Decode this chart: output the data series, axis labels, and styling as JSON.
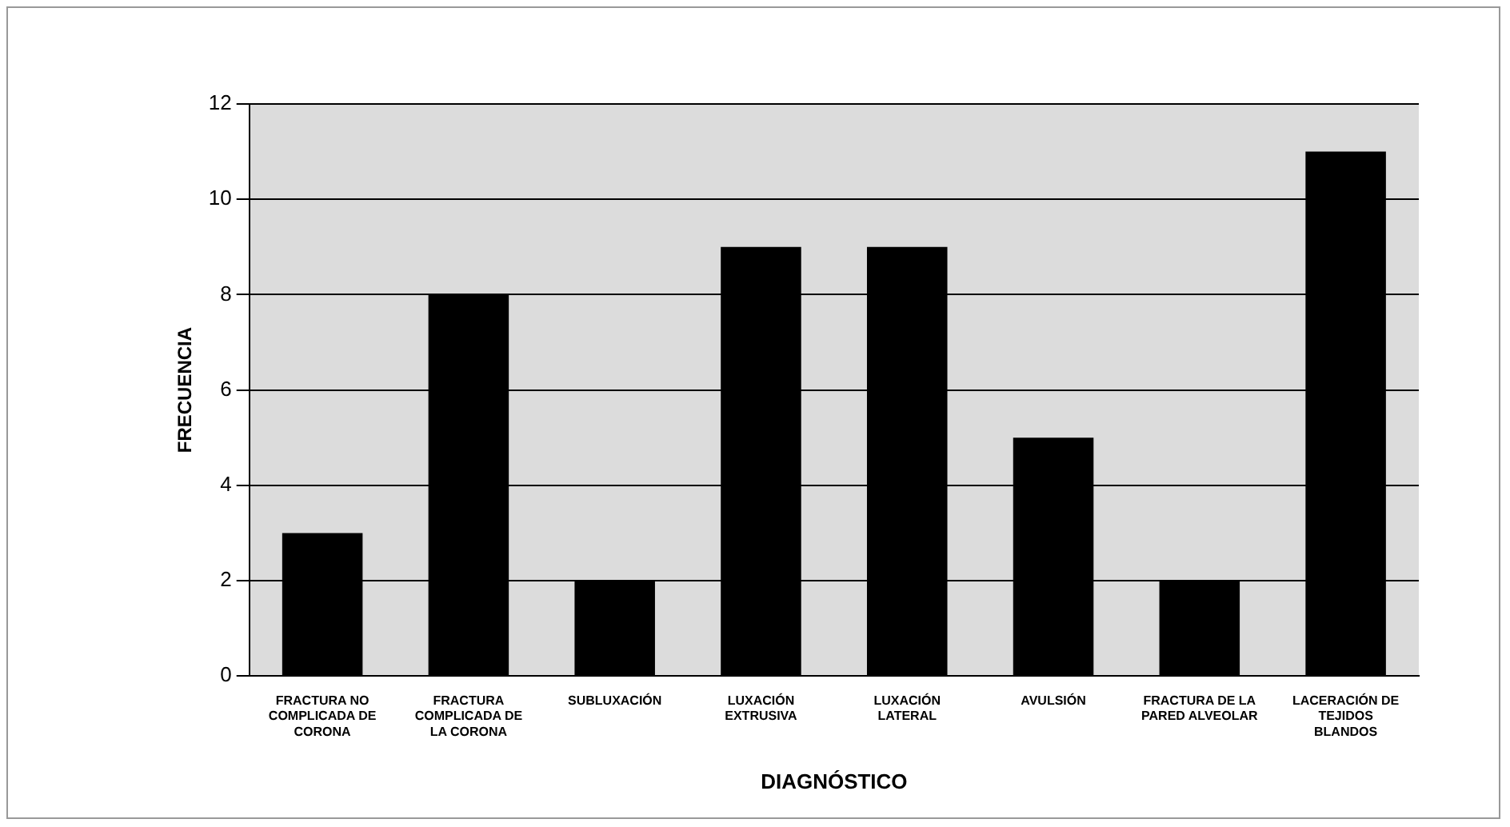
{
  "chart_data": {
    "type": "bar",
    "xlabel": "DIAGNÓSTICO",
    "ylabel": "FRECUENCIA",
    "categories": [
      "FRACTURA NO COMPLICADA DE CORONA",
      "FRACTURA COMPLICADA DE LA CORONA",
      "SUBLUXACIÓN",
      "LUXACIÓN EXTRUSIVA",
      "LUXACIÓN LATERAL",
      "AVULSIÓN",
      "FRACTURA DE LA PARED ALVEOLAR",
      "LACERACIÓN DE TEJIDOS BLANDOS"
    ],
    "values": [
      3,
      8,
      2,
      9,
      9,
      5,
      2,
      11
    ],
    "color": "#000000",
    "ylim": [
      0,
      12
    ],
    "yticks": [
      0,
      2,
      4,
      6,
      8,
      10,
      12
    ],
    "grid": "y",
    "legend": false
  }
}
